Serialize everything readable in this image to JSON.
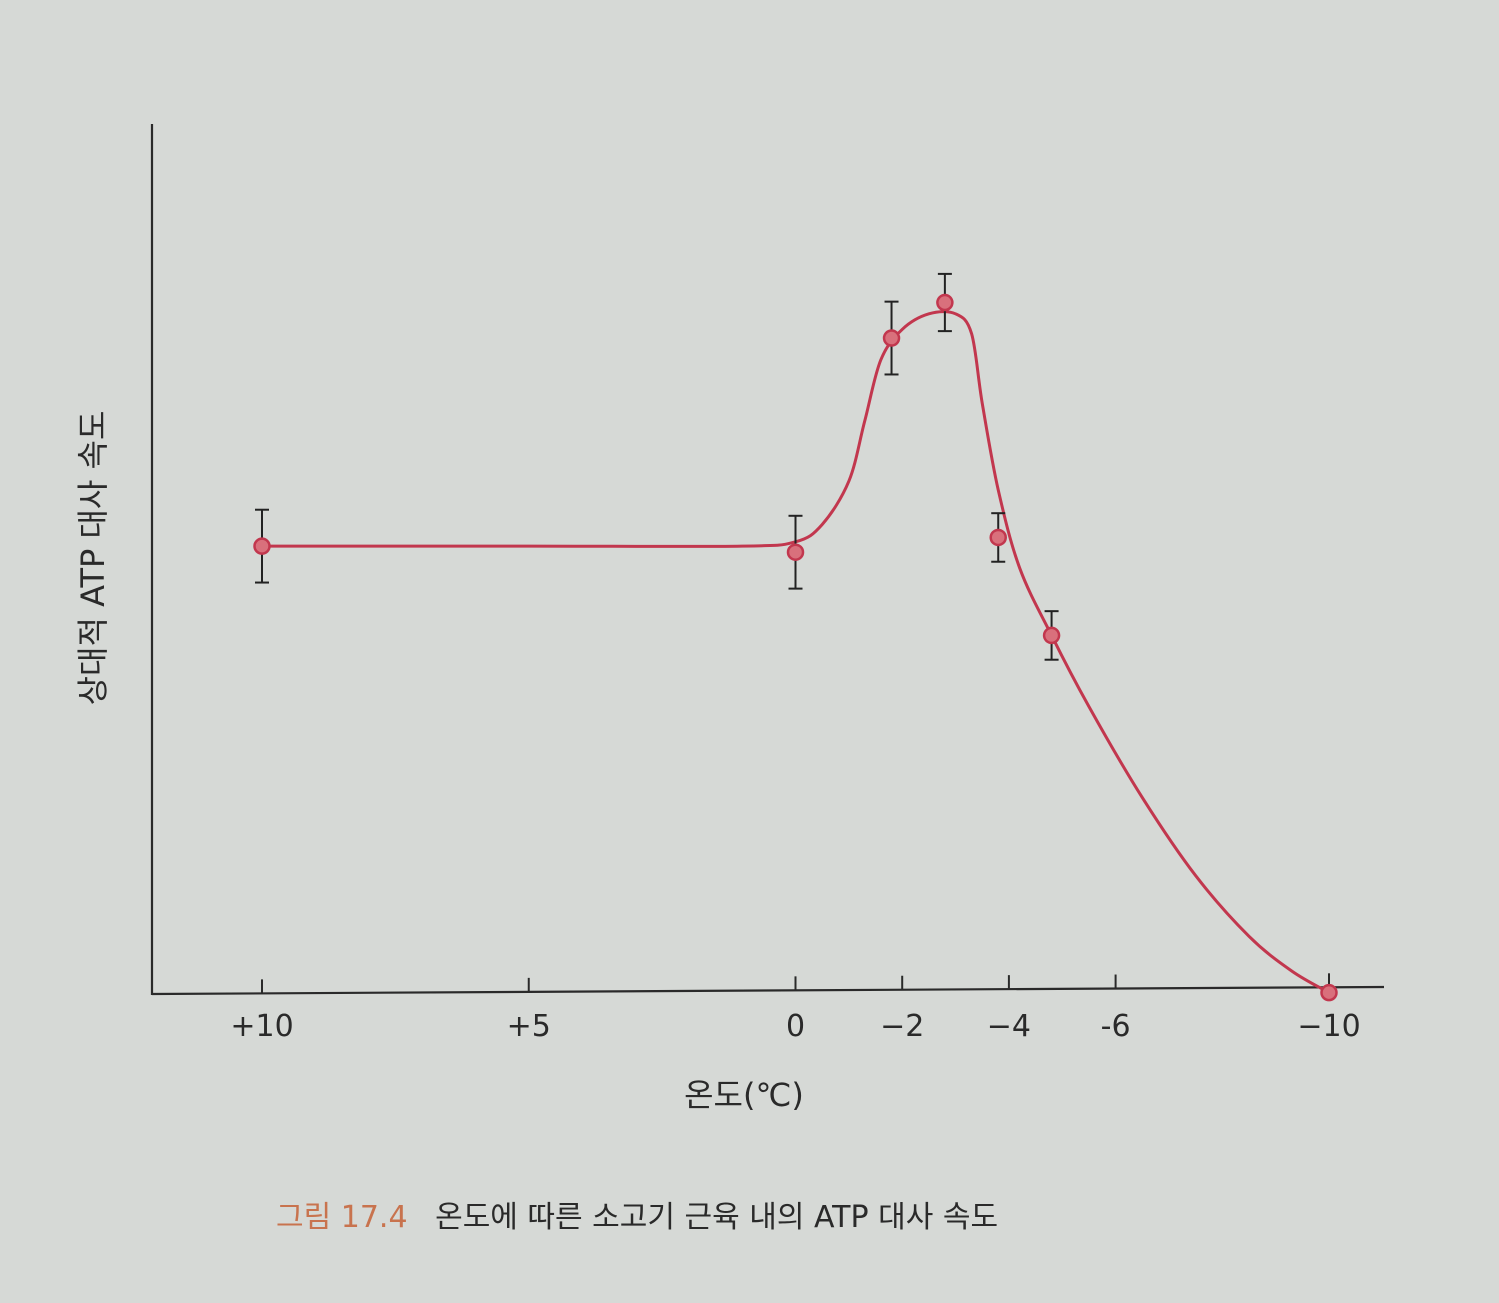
{
  "chart_data": {
    "type": "line",
    "title": "",
    "xlabel": "온도(℃)",
    "ylabel": "상대적 ATP 대사 속도",
    "x_ticks": [
      10,
      5,
      0,
      -2,
      -4,
      -6,
      -10
    ],
    "x_tick_labels": [
      "+10",
      "+5",
      "0",
      "−2",
      "−4",
      "-6",
      "−10"
    ],
    "xlim": [
      12,
      -11
    ],
    "ylim": [
      0,
      100
    ],
    "x_reversed": true,
    "y_ticks_shown": false,
    "series": [
      {
        "name": "ATP 대사 속도",
        "color": "#c2374e",
        "points": [
          {
            "x": 10,
            "y": 59.5,
            "err": 4.2
          },
          {
            "x": 0,
            "y": 58.8,
            "err": 4.2
          },
          {
            "x": -1.8,
            "y": 83.5,
            "err": 4.2
          },
          {
            "x": -2.8,
            "y": 87.6,
            "err": 3.3
          },
          {
            "x": -3.8,
            "y": 60.5,
            "err": 2.8
          },
          {
            "x": -4.8,
            "y": 49.2,
            "err": 2.8
          },
          {
            "x": -10,
            "y": 8.0,
            "err": 0
          }
        ],
        "curve": [
          [
            10,
            59.5
          ],
          [
            5,
            59.5
          ],
          [
            1,
            59.5
          ],
          [
            0,
            60.0
          ],
          [
            -0.5,
            62.0
          ],
          [
            -1.0,
            67.0
          ],
          [
            -1.3,
            74.0
          ],
          [
            -1.6,
            81.0
          ],
          [
            -2.0,
            84.5
          ],
          [
            -2.5,
            86.3
          ],
          [
            -3.0,
            86.3
          ],
          [
            -3.3,
            84.0
          ],
          [
            -3.5,
            76.0
          ],
          [
            -3.8,
            66.0
          ],
          [
            -4.2,
            57.0
          ],
          [
            -4.8,
            49.2
          ],
          [
            -5.5,
            41.0
          ],
          [
            -6.5,
            30.5
          ],
          [
            -7.5,
            21.5
          ],
          [
            -8.5,
            14.5
          ],
          [
            -9.3,
            10.5
          ],
          [
            -10,
            8.0
          ]
        ]
      }
    ]
  },
  "caption": {
    "figure_number": "그림 17.4",
    "text": "온도에 따른 소고기 근육 내의 ATP 대사 속도"
  },
  "colors": {
    "background": "#d6d9d6",
    "axis": "#2a2a2a",
    "series": "#c2374e",
    "marker_fill": "#d9707c",
    "caption_accent": "#c8734e"
  }
}
